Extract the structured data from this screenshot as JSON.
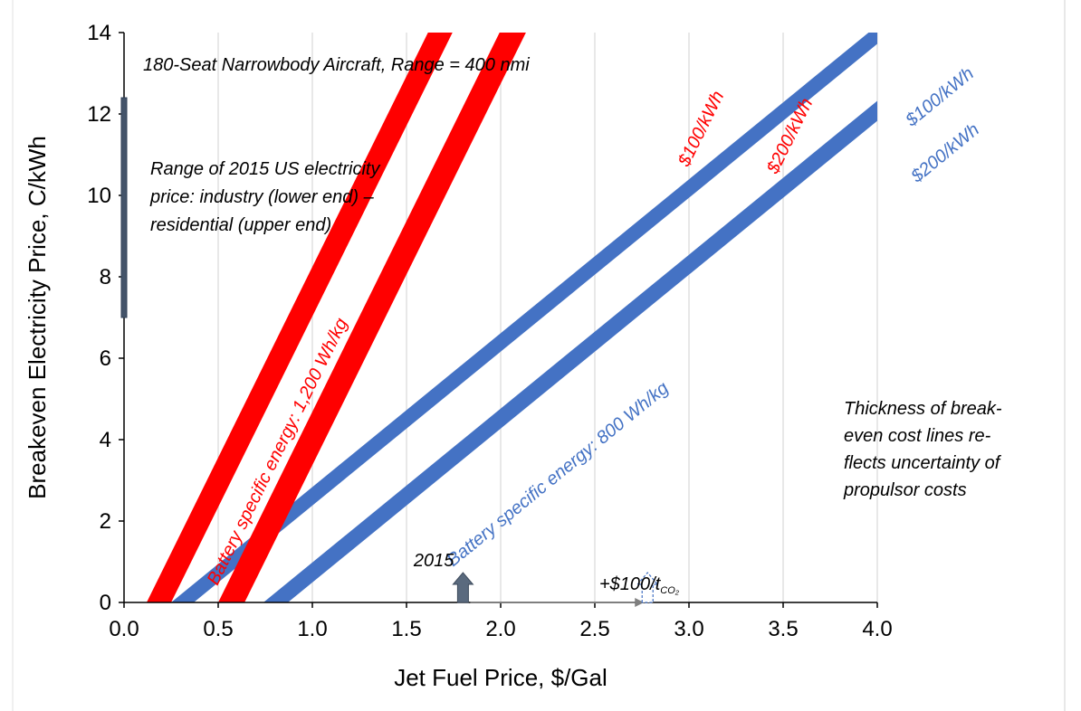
{
  "chart_data": {
    "type": "line",
    "title": "180-Seat Narrowbody Aircraft, Range = 400 nmi",
    "xlabel": "Jet Fuel Price, $/Gal",
    "ylabel": "Breakeven Electricity Price, C/kWh",
    "xlim": [
      0,
      4.0
    ],
    "ylim": [
      0,
      14
    ],
    "x_ticks": [
      "0.0",
      "0.5",
      "1.0",
      "1.5",
      "2.0",
      "2.5",
      "3.0",
      "3.5",
      "4.0"
    ],
    "y_ticks": [
      "0",
      "2",
      "4",
      "6",
      "8",
      "10",
      "12",
      "14"
    ],
    "grid": "vertical",
    "series": [
      {
        "name": "$100/kWh",
        "group": "Battery specific energy: 1,200 Wh/kg",
        "color": "#ff0000",
        "x_intercept_low": 0.12,
        "x_intercept_high": 0.25,
        "slope": 9.37
      },
      {
        "name": "$200/kWh",
        "group": "Battery specific energy: 1,200 Wh/kg",
        "color": "#ff0000",
        "x_intercept_low": 0.5,
        "x_intercept_high": 0.64,
        "slope": 9.37
      },
      {
        "name": "$100/kWh",
        "group": "Battery specific energy: 800 Wh/kg",
        "color": "#4472c4",
        "x_intercept_low": 0.25,
        "x_intercept_high": 0.37,
        "slope": 3.78
      },
      {
        "name": "$200/kWh",
        "group": "Battery specific energy: 800 Wh/kg",
        "color": "#4472c4",
        "x_intercept_low": 0.74,
        "x_intercept_high": 0.87,
        "slope": 3.78
      }
    ],
    "band_group_labels": [
      {
        "text": "Battery specific energy: 1,200 Wh/kg",
        "color": "#ff0000"
      },
      {
        "text": "Battery specific energy: 800 Wh/kg",
        "color": "#4472c4"
      }
    ],
    "electricity_range": {
      "x": 0.0,
      "y_low": 7.0,
      "y_high": 12.4,
      "color": "#44546a",
      "label": [
        "Range of 2015 US electricity",
        "price: industry (lower end) –",
        "residential (upper end)"
      ]
    },
    "notes": {
      "thickness": [
        "Thickness of break-",
        "even cost lines re-",
        "flects uncertainty of",
        "propulsor costs"
      ]
    },
    "fuel_markers": {
      "year_label": "2015",
      "year_x": 1.8,
      "co2_label_prefix": "+$100/t",
      "co2_label_sub": "CO₂",
      "co2_x": 2.78,
      "color": "#5a6a7e"
    }
  }
}
